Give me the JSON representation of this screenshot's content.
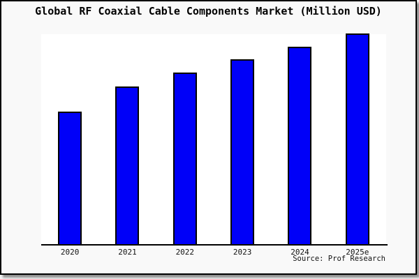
{
  "title": "Global RF Coaxial Cable Components Market (Million USD)",
  "source": "Source: Prof Research",
  "colors": {
    "bar_fill": "#0000F8",
    "bar_border": "#000000",
    "axis": "#000000",
    "plot_background": "#FFFFFF",
    "frame_background": "#F9F9F9",
    "frame_border": "#000000",
    "title_text": "#000000"
  },
  "chart_data": {
    "type": "bar",
    "title": "Global RF Coaxial Cable Components Market (Million USD)",
    "categories": [
      "2020",
      "2021",
      "2022",
      "2023",
      "2024",
      "2025e"
    ],
    "values": [
      62.7,
      74.8,
      81.2,
      87.7,
      93.7,
      100
    ],
    "value_scale": "relative height, tallest bar (2025e) = 100; no y-axis ticks or gridlines shown",
    "xlabel": "",
    "ylabel": "",
    "ylim": [
      0,
      100
    ],
    "grid": false,
    "legend": false,
    "source_note": "Source: Prof Research"
  }
}
